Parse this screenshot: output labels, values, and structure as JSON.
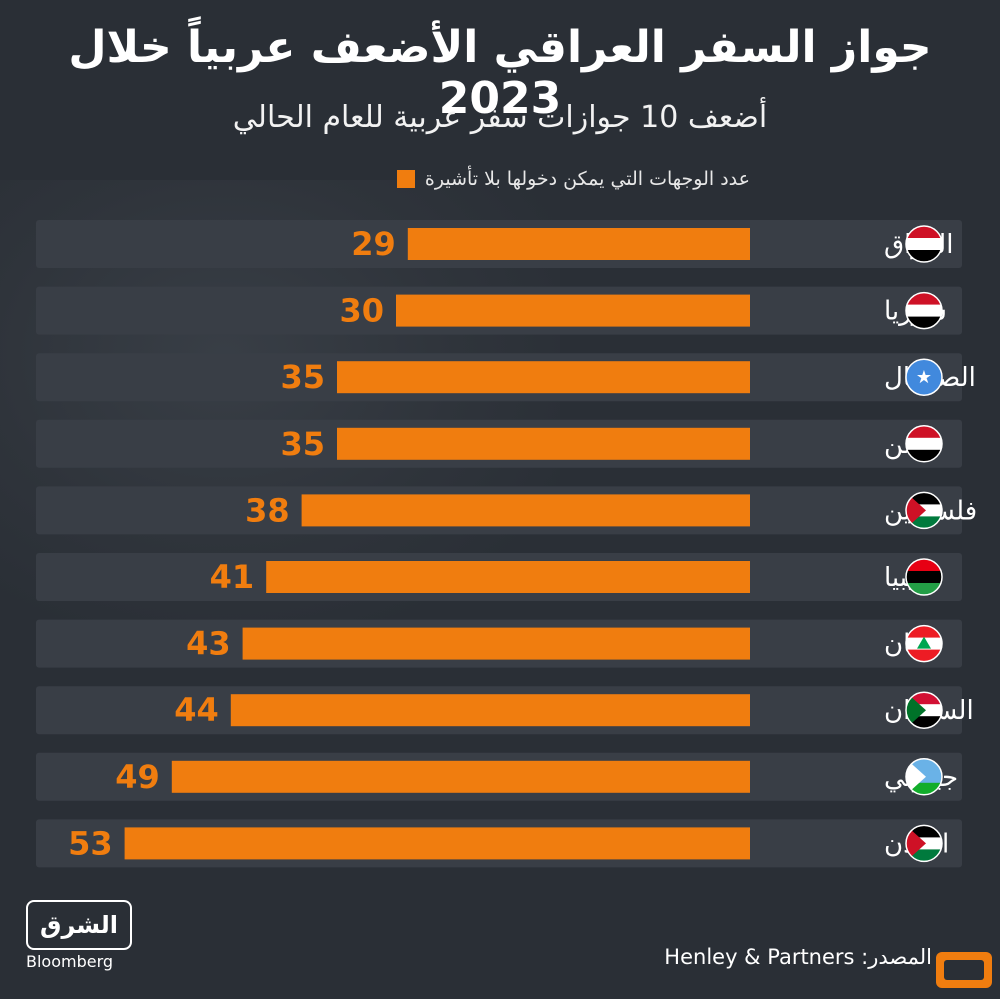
{
  "header": {
    "title": "جواز السفر العراقي الأضعف عربياً خلال 2023",
    "subtitle": "أضعف 10 جوازات سفر عربية للعام الحالي",
    "legend_label": "عدد الوجهات التي يمكن دخولها بلا تأشيرة"
  },
  "footer": {
    "logo_text": "الشرق",
    "logo_sub": "Bloomberg",
    "source": "المصدر: Henley & Partners"
  },
  "colors": {
    "bar": "#f07d0f",
    "row_bg": "#393e46",
    "label": "#ffffff"
  },
  "chart_data": {
    "type": "bar",
    "orientation": "horizontal",
    "categories": [
      "العراق",
      "سوريا",
      "الصومال",
      "اليمن",
      "فلسطين",
      "ليبيا",
      "لبنان",
      "السودان",
      "جيبوتي",
      "الأردن"
    ],
    "flag_icons": [
      "iraq-flag-icon",
      "syria-flag-icon",
      "somalia-flag-icon",
      "yemen-flag-icon",
      "palestine-flag-icon",
      "libya-flag-icon",
      "lebanon-flag-icon",
      "sudan-flag-icon",
      "djibouti-flag-icon",
      "jordan-flag-icon"
    ],
    "values": [
      29,
      30,
      35,
      35,
      38,
      41,
      43,
      44,
      49,
      53
    ],
    "xlim": [
      0,
      56
    ],
    "grid": false,
    "legend_position": "top"
  }
}
